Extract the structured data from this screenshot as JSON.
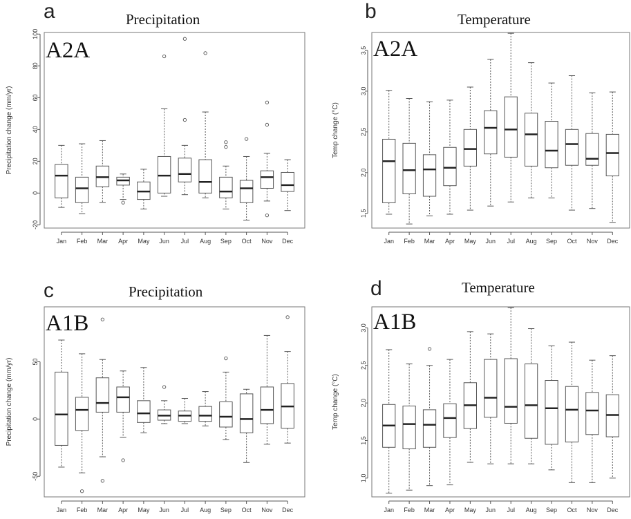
{
  "chart_data": [
    {
      "type": "boxplot",
      "panel_letter": "a",
      "title": "Precipitation",
      "scenario": "A2A",
      "ylabel": "Precipitation change (mm/yr)",
      "ylim": [
        -22,
        101
      ],
      "yticks": [
        -20,
        0,
        20,
        40,
        60,
        80,
        100
      ],
      "categories": [
        "Jan",
        "Feb",
        "Mar",
        "Apr",
        "May",
        "Jun",
        "Jul",
        "Aug",
        "Sep",
        "Oct",
        "Nov",
        "Dec"
      ],
      "boxes": [
        {
          "whislo": -9,
          "q1": -3,
          "med": 11,
          "q3": 18,
          "whishi": 30,
          "fliers": []
        },
        {
          "whislo": -13,
          "q1": -6,
          "med": 3,
          "q3": 10,
          "whishi": 31,
          "fliers": []
        },
        {
          "whislo": -6,
          "q1": 4,
          "med": 10,
          "q3": 17,
          "whishi": 33,
          "fliers": []
        },
        {
          "whislo": -4,
          "q1": 5,
          "med": 8,
          "q3": 10,
          "whishi": 12,
          "fliers": [
            -6
          ]
        },
        {
          "whislo": -10,
          "q1": -4,
          "med": 1,
          "q3": 7,
          "whishi": 15,
          "fliers": []
        },
        {
          "whislo": -2,
          "q1": 0,
          "med": 11,
          "q3": 23,
          "whishi": 53,
          "fliers": [
            86
          ]
        },
        {
          "whislo": -1,
          "q1": 7,
          "med": 12,
          "q3": 22,
          "whishi": 30,
          "fliers": [
            46,
            97
          ]
        },
        {
          "whislo": -3,
          "q1": 0,
          "med": 7,
          "q3": 21,
          "whishi": 51,
          "fliers": [
            88
          ]
        },
        {
          "whislo": -10,
          "q1": -3,
          "med": 1,
          "q3": 10,
          "whishi": 17,
          "fliers": [
            29,
            32
          ]
        },
        {
          "whislo": -17,
          "q1": -6,
          "med": 3,
          "q3": 8,
          "whishi": 23,
          "fliers": [
            34
          ]
        },
        {
          "whislo": -5,
          "q1": 3,
          "med": 10,
          "q3": 14,
          "whishi": 25,
          "fliers": [
            43,
            57,
            -14
          ]
        },
        {
          "whislo": -11,
          "q1": 1,
          "med": 5,
          "q3": 13,
          "whishi": 21,
          "fliers": []
        }
      ]
    },
    {
      "type": "boxplot",
      "panel_letter": "b",
      "title": "Temperature",
      "scenario": "A2A",
      "ylabel": "Temp change (°C)",
      "ylim": [
        1.32,
        3.72
      ],
      "yticks": [
        "1.5",
        "2.0",
        "2.5",
        "3.0",
        "3.5"
      ],
      "categories": [
        "Jan",
        "Feb",
        "Mar",
        "Apr",
        "May",
        "Jun",
        "Jul",
        "Aug",
        "Sep",
        "Oct",
        "Nov",
        "Dec"
      ],
      "boxes": [
        {
          "whislo": 1.49,
          "q1": 1.63,
          "med": 2.14,
          "q3": 2.41,
          "whishi": 3.01,
          "fliers": []
        },
        {
          "whislo": 1.37,
          "q1": 1.74,
          "med": 2.03,
          "q3": 2.36,
          "whishi": 2.91,
          "fliers": []
        },
        {
          "whislo": 1.47,
          "q1": 1.71,
          "med": 2.04,
          "q3": 2.22,
          "whishi": 2.87,
          "fliers": []
        },
        {
          "whislo": 1.49,
          "q1": 1.84,
          "med": 2.06,
          "q3": 2.31,
          "whishi": 2.89,
          "fliers": []
        },
        {
          "whislo": 1.54,
          "q1": 2.08,
          "med": 2.29,
          "q3": 2.53,
          "whishi": 3.05,
          "fliers": []
        },
        {
          "whislo": 1.59,
          "q1": 2.23,
          "med": 2.55,
          "q3": 2.76,
          "whishi": 3.39,
          "fliers": []
        },
        {
          "whislo": 1.64,
          "q1": 2.19,
          "med": 2.53,
          "q3": 2.93,
          "whishi": 3.71,
          "fliers": []
        },
        {
          "whislo": 1.69,
          "q1": 2.08,
          "med": 2.47,
          "q3": 2.73,
          "whishi": 3.35,
          "fliers": []
        },
        {
          "whislo": 1.69,
          "q1": 2.06,
          "med": 2.27,
          "q3": 2.63,
          "whishi": 3.1,
          "fliers": []
        },
        {
          "whislo": 1.54,
          "q1": 2.09,
          "med": 2.35,
          "q3": 2.53,
          "whishi": 3.19,
          "fliers": []
        },
        {
          "whislo": 1.56,
          "q1": 2.09,
          "med": 2.17,
          "q3": 2.48,
          "whishi": 2.98,
          "fliers": []
        },
        {
          "whislo": 1.39,
          "q1": 1.96,
          "med": 2.24,
          "q3": 2.47,
          "whishi": 2.99,
          "fliers": []
        }
      ]
    },
    {
      "type": "boxplot",
      "panel_letter": "c",
      "title": "Precipitation",
      "scenario": "A1B",
      "ylabel": "Precipitation change (mm/yr)",
      "ylim": [
        -68,
        98
      ],
      "yticks": [
        -50,
        0,
        50
      ],
      "categories": [
        "Jan",
        "Feb",
        "Mar",
        "Apr",
        "May",
        "Jun",
        "Jul",
        "Aug",
        "Sep",
        "Oct",
        "Nov",
        "Dec"
      ],
      "boxes": [
        {
          "whislo": -42,
          "q1": -23,
          "med": 4,
          "q3": 41,
          "whishi": 69,
          "fliers": []
        },
        {
          "whislo": -47,
          "q1": -10,
          "med": 8,
          "q3": 19,
          "whishi": 57,
          "fliers": [
            -63
          ]
        },
        {
          "whislo": -33,
          "q1": 6,
          "med": 14,
          "q3": 36,
          "whishi": 52,
          "fliers": [
            87,
            -54
          ]
        },
        {
          "whislo": -16,
          "q1": 6,
          "med": 19,
          "q3": 28,
          "whishi": 42,
          "fliers": [
            -36
          ]
        },
        {
          "whislo": -12,
          "q1": -3,
          "med": 5,
          "q3": 16,
          "whishi": 45,
          "fliers": []
        },
        {
          "whislo": -4,
          "q1": -1,
          "med": 3,
          "q3": 8,
          "whishi": 16,
          "fliers": [
            28
          ]
        },
        {
          "whislo": -4,
          "q1": -2,
          "med": 3,
          "q3": 7,
          "whishi": 18,
          "fliers": []
        },
        {
          "whislo": -6,
          "q1": -2,
          "med": 3,
          "q3": 11,
          "whishi": 24,
          "fliers": []
        },
        {
          "whislo": -18,
          "q1": -7,
          "med": 2,
          "q3": 15,
          "whishi": 41,
          "fliers": [
            53
          ]
        },
        {
          "whislo": -38,
          "q1": -12,
          "med": 0,
          "q3": 22,
          "whishi": 26,
          "fliers": []
        },
        {
          "whislo": -22,
          "q1": -4,
          "med": 8,
          "q3": 28,
          "whishi": 73,
          "fliers": []
        },
        {
          "whislo": -21,
          "q1": -8,
          "med": 11,
          "q3": 31,
          "whishi": 59,
          "fliers": [
            89
          ]
        }
      ]
    },
    {
      "type": "boxplot",
      "panel_letter": "d",
      "title": "Temperature",
      "scenario": "A1B",
      "ylabel": "Temp change (°C)",
      "ylim": [
        0.75,
        3.28
      ],
      "yticks": [
        "1.0",
        "1.5",
        "2.0",
        "2.5",
        "3.0"
      ],
      "categories": [
        "Jan",
        "Feb",
        "Mar",
        "Apr",
        "May",
        "Jun",
        "Jul",
        "Aug",
        "Sep",
        "Oct",
        "Nov",
        "Dec"
      ],
      "boxes": [
        {
          "whislo": 0.8,
          "q1": 1.41,
          "med": 1.7,
          "q3": 1.98,
          "whishi": 2.71,
          "fliers": []
        },
        {
          "whislo": 0.84,
          "q1": 1.39,
          "med": 1.72,
          "q3": 1.96,
          "whishi": 2.52,
          "fliers": []
        },
        {
          "whislo": 0.9,
          "q1": 1.41,
          "med": 1.71,
          "q3": 1.91,
          "whishi": 2.5,
          "fliers": [
            2.72
          ]
        },
        {
          "whislo": 0.91,
          "q1": 1.54,
          "med": 1.8,
          "q3": 1.99,
          "whishi": 2.58,
          "fliers": []
        },
        {
          "whislo": 1.21,
          "q1": 1.66,
          "med": 1.97,
          "q3": 2.27,
          "whishi": 2.95,
          "fliers": []
        },
        {
          "whislo": 1.19,
          "q1": 1.81,
          "med": 2.07,
          "q3": 2.58,
          "whishi": 2.92,
          "fliers": []
        },
        {
          "whislo": 1.19,
          "q1": 1.73,
          "med": 1.95,
          "q3": 2.59,
          "whishi": 3.27,
          "fliers": []
        },
        {
          "whislo": 1.19,
          "q1": 1.53,
          "med": 1.97,
          "q3": 2.52,
          "whishi": 2.99,
          "fliers": []
        },
        {
          "whislo": 1.11,
          "q1": 1.45,
          "med": 1.93,
          "q3": 2.3,
          "whishi": 2.76,
          "fliers": []
        },
        {
          "whislo": 0.94,
          "q1": 1.48,
          "med": 1.91,
          "q3": 2.22,
          "whishi": 2.81,
          "fliers": []
        },
        {
          "whislo": 0.94,
          "q1": 1.58,
          "med": 1.9,
          "q3": 2.14,
          "whishi": 2.57,
          "fliers": []
        },
        {
          "whislo": 1.0,
          "q1": 1.55,
          "med": 1.84,
          "q3": 2.11,
          "whishi": 2.63,
          "fliers": []
        }
      ]
    }
  ]
}
